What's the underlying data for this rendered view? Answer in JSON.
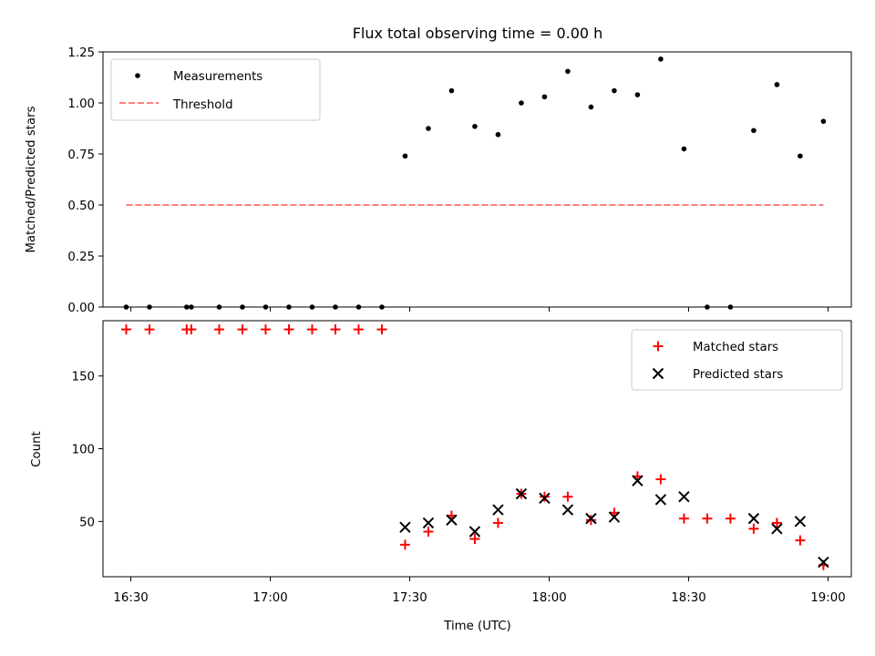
{
  "chart_data": [
    {
      "type": "scatter",
      "title": "Flux total observing time = 0.00 h",
      "xlabel": "",
      "ylabel": "Matched/Predicted stars",
      "ylim": [
        0,
        1.25
      ],
      "yticks": [
        "0.00",
        "0.25",
        "0.50",
        "0.75",
        "1.00",
        "1.25"
      ],
      "xlim": [
        "16:24",
        "19:05"
      ],
      "grid": false,
      "legend_position": "top-left",
      "series": [
        {
          "name": "Measurements",
          "marker": "dot",
          "color": "#000000",
          "points": [
            [
              "16:29",
              0
            ],
            [
              "16:34",
              0
            ],
            [
              "16:42",
              0
            ],
            [
              "16:43",
              0
            ],
            [
              "16:49",
              0
            ],
            [
              "16:54",
              0
            ],
            [
              "16:59",
              0
            ],
            [
              "17:04",
              0
            ],
            [
              "17:09",
              0
            ],
            [
              "17:14",
              0
            ],
            [
              "17:19",
              0
            ],
            [
              "17:24",
              0
            ],
            [
              "17:29",
              0.74
            ],
            [
              "17:34",
              0.875
            ],
            [
              "17:39",
              1.06
            ],
            [
              "17:44",
              0.885
            ],
            [
              "17:49",
              0.845
            ],
            [
              "17:54",
              1.0
            ],
            [
              "17:59",
              1.03
            ],
            [
              "18:04",
              1.155
            ],
            [
              "18:09",
              0.98
            ],
            [
              "18:14",
              1.06
            ],
            [
              "18:19",
              1.04
            ],
            [
              "18:24",
              1.215
            ],
            [
              "18:29",
              0.775
            ],
            [
              "18:34",
              0
            ],
            [
              "18:39",
              0
            ],
            [
              "18:44",
              0.865
            ],
            [
              "18:49",
              1.09
            ],
            [
              "18:54",
              0.74
            ],
            [
              "18:59",
              0.91
            ]
          ]
        },
        {
          "name": "Threshold",
          "marker": "dashed-line",
          "color": "#ff7f7f",
          "points": [
            [
              "16:29",
              0.5
            ],
            [
              "18:59",
              0.5
            ]
          ]
        }
      ]
    },
    {
      "type": "scatter",
      "title": "",
      "xlabel": "Time (UTC)",
      "ylabel": "Count",
      "ylim": [
        12,
        188
      ],
      "yticks": [
        "50",
        "100",
        "150"
      ],
      "xticks": [
        "16:30",
        "17:00",
        "17:30",
        "18:00",
        "18:30",
        "19:00"
      ],
      "grid": false,
      "legend_position": "top-right",
      "series": [
        {
          "name": "Matched stars",
          "marker": "plus",
          "color": "#ff0000",
          "points": [
            [
              "16:29",
              182
            ],
            [
              "16:34",
              182
            ],
            [
              "16:42",
              182
            ],
            [
              "16:43",
              182
            ],
            [
              "16:49",
              182
            ],
            [
              "16:54",
              182
            ],
            [
              "16:59",
              182
            ],
            [
              "17:04",
              182
            ],
            [
              "17:09",
              182
            ],
            [
              "17:14",
              182
            ],
            [
              "17:19",
              182
            ],
            [
              "17:24",
              182
            ],
            [
              "17:29",
              34
            ],
            [
              "17:34",
              43
            ],
            [
              "17:39",
              54
            ],
            [
              "17:44",
              38
            ],
            [
              "17:49",
              49
            ],
            [
              "17:54",
              69
            ],
            [
              "17:59",
              67
            ],
            [
              "18:04",
              67
            ],
            [
              "18:09",
              51
            ],
            [
              "18:14",
              56
            ],
            [
              "18:19",
              81
            ],
            [
              "18:24",
              79
            ],
            [
              "18:29",
              52
            ],
            [
              "18:34",
              52
            ],
            [
              "18:39",
              52
            ],
            [
              "18:44",
              45
            ],
            [
              "18:49",
              49
            ],
            [
              "18:54",
              37
            ],
            [
              "18:59",
              20
            ]
          ]
        },
        {
          "name": "Predicted stars",
          "marker": "x",
          "color": "#000000",
          "points": [
            [
              "17:29",
              46
            ],
            [
              "17:34",
              49
            ],
            [
              "17:39",
              51
            ],
            [
              "17:44",
              43
            ],
            [
              "17:49",
              58
            ],
            [
              "17:54",
              69
            ],
            [
              "17:59",
              66
            ],
            [
              "18:04",
              58
            ],
            [
              "18:09",
              52
            ],
            [
              "18:14",
              53
            ],
            [
              "18:19",
              78
            ],
            [
              "18:24",
              65
            ],
            [
              "18:29",
              67
            ],
            [
              "18:44",
              52
            ],
            [
              "18:49",
              45
            ],
            [
              "18:54",
              50
            ],
            [
              "18:59",
              22
            ]
          ]
        }
      ]
    }
  ]
}
